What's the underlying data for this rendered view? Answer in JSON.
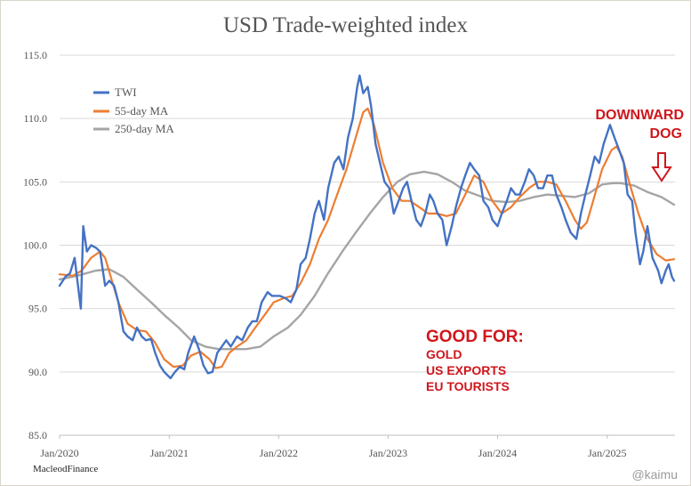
{
  "chart_data": {
    "type": "line",
    "title": "USD Trade-weighted index",
    "xlabel": "",
    "ylabel": "",
    "ylim": [
      85,
      115
    ],
    "xlim": [
      "2020-01-01",
      "2025-08-15"
    ],
    "yticks": [
      "115.0",
      "110.0",
      "105.0",
      "100.0",
      "95.0",
      "90.0",
      "85.0"
    ],
    "xticks": [
      "Jan/2020",
      "Jan/2021",
      "Jan/2022",
      "Jan/2023",
      "Jan/2024",
      "Jan/2025"
    ],
    "grid": true,
    "legend_position": "top-left",
    "series": [
      {
        "name": "TWI",
        "color": "#4472c4",
        "points": [
          [
            "2020-01-01",
            96.8
          ],
          [
            "2020-01-20",
            97.5
          ],
          [
            "2020-02-05",
            97.8
          ],
          [
            "2020-02-20",
            99.0
          ],
          [
            "2020-03-05",
            96.3
          ],
          [
            "2020-03-12",
            95.0
          ],
          [
            "2020-03-20",
            101.5
          ],
          [
            "2020-04-01",
            99.5
          ],
          [
            "2020-04-15",
            100.0
          ],
          [
            "2020-05-01",
            99.8
          ],
          [
            "2020-05-15",
            99.5
          ],
          [
            "2020-06-01",
            96.8
          ],
          [
            "2020-06-15",
            97.2
          ],
          [
            "2020-07-01",
            96.8
          ],
          [
            "2020-07-15",
            95.5
          ],
          [
            "2020-08-01",
            93.2
          ],
          [
            "2020-08-15",
            92.8
          ],
          [
            "2020-09-01",
            92.5
          ],
          [
            "2020-09-15",
            93.5
          ],
          [
            "2020-10-01",
            92.8
          ],
          [
            "2020-10-15",
            92.5
          ],
          [
            "2020-11-01",
            92.6
          ],
          [
            "2020-11-15",
            91.5
          ],
          [
            "2020-12-01",
            90.5
          ],
          [
            "2020-12-15",
            90.0
          ],
          [
            "2021-01-05",
            89.5
          ],
          [
            "2021-01-20",
            90.0
          ],
          [
            "2021-02-05",
            90.4
          ],
          [
            "2021-02-20",
            90.2
          ],
          [
            "2021-03-05",
            91.5
          ],
          [
            "2021-03-25",
            92.8
          ],
          [
            "2021-04-10",
            91.8
          ],
          [
            "2021-04-25",
            90.5
          ],
          [
            "2021-05-10",
            89.9
          ],
          [
            "2021-05-25",
            90.0
          ],
          [
            "2021-06-10",
            91.5
          ],
          [
            "2021-06-25",
            92.0
          ],
          [
            "2021-07-10",
            92.5
          ],
          [
            "2021-07-25",
            92.0
          ],
          [
            "2021-08-15",
            92.8
          ],
          [
            "2021-09-01",
            92.5
          ],
          [
            "2021-09-20",
            93.5
          ],
          [
            "2021-10-05",
            94.0
          ],
          [
            "2021-10-20",
            94.0
          ],
          [
            "2021-11-05",
            95.5
          ],
          [
            "2021-11-25",
            96.3
          ],
          [
            "2021-12-10",
            96.0
          ],
          [
            "2022-01-05",
            96.0
          ],
          [
            "2022-01-25",
            95.8
          ],
          [
            "2022-02-10",
            95.5
          ],
          [
            "2022-03-01",
            96.5
          ],
          [
            "2022-03-15",
            98.5
          ],
          [
            "2022-04-01",
            99.0
          ],
          [
            "2022-04-15",
            100.5
          ],
          [
            "2022-05-01",
            102.5
          ],
          [
            "2022-05-15",
            103.5
          ],
          [
            "2022-06-01",
            102.0
          ],
          [
            "2022-06-15",
            104.5
          ],
          [
            "2022-07-05",
            106.5
          ],
          [
            "2022-07-20",
            107.0
          ],
          [
            "2022-08-05",
            106.0
          ],
          [
            "2022-08-20",
            108.5
          ],
          [
            "2022-09-05",
            110.0
          ],
          [
            "2022-09-20",
            112.5
          ],
          [
            "2022-09-28",
            113.4
          ],
          [
            "2022-10-10",
            112.0
          ],
          [
            "2022-10-25",
            112.5
          ],
          [
            "2022-11-05",
            111.0
          ],
          [
            "2022-11-20",
            108.0
          ],
          [
            "2022-12-05",
            106.5
          ],
          [
            "2022-12-20",
            105.0
          ],
          [
            "2023-01-05",
            104.5
          ],
          [
            "2023-01-20",
            102.5
          ],
          [
            "2023-02-05",
            103.5
          ],
          [
            "2023-02-20",
            104.5
          ],
          [
            "2023-03-05",
            105.0
          ],
          [
            "2023-03-20",
            103.5
          ],
          [
            "2023-04-05",
            102.0
          ],
          [
            "2023-04-20",
            101.5
          ],
          [
            "2023-05-05",
            102.5
          ],
          [
            "2023-05-20",
            104.0
          ],
          [
            "2023-06-01",
            103.5
          ],
          [
            "2023-06-15",
            102.5
          ],
          [
            "2023-07-01",
            102.0
          ],
          [
            "2023-07-15",
            100.0
          ],
          [
            "2023-08-01",
            101.5
          ],
          [
            "2023-08-15",
            103.0
          ],
          [
            "2023-09-01",
            104.5
          ],
          [
            "2023-09-15",
            105.5
          ],
          [
            "2023-10-01",
            106.5
          ],
          [
            "2023-10-15",
            106.0
          ],
          [
            "2023-11-01",
            105.5
          ],
          [
            "2023-11-15",
            103.5
          ],
          [
            "2023-12-01",
            103.0
          ],
          [
            "2023-12-15",
            102.0
          ],
          [
            "2024-01-01",
            101.5
          ],
          [
            "2024-01-15",
            102.5
          ],
          [
            "2024-02-01",
            103.5
          ],
          [
            "2024-02-15",
            104.5
          ],
          [
            "2024-03-01",
            104.0
          ],
          [
            "2024-03-15",
            104.0
          ],
          [
            "2024-04-01",
            105.0
          ],
          [
            "2024-04-15",
            106.0
          ],
          [
            "2024-05-01",
            105.5
          ],
          [
            "2024-05-15",
            104.5
          ],
          [
            "2024-06-01",
            104.5
          ],
          [
            "2024-06-15",
            105.5
          ],
          [
            "2024-07-01",
            105.5
          ],
          [
            "2024-07-15",
            104.0
          ],
          [
            "2024-08-01",
            103.0
          ],
          [
            "2024-08-15",
            102.0
          ],
          [
            "2024-09-01",
            101.0
          ],
          [
            "2024-09-20",
            100.5
          ],
          [
            "2024-10-05",
            102.5
          ],
          [
            "2024-10-20",
            104.0
          ],
          [
            "2024-11-05",
            105.5
          ],
          [
            "2024-11-20",
            107.0
          ],
          [
            "2024-12-05",
            106.5
          ],
          [
            "2024-12-20",
            108.0
          ],
          [
            "2025-01-10",
            109.5
          ],
          [
            "2025-01-25",
            108.5
          ],
          [
            "2025-02-10",
            107.5
          ],
          [
            "2025-02-25",
            106.5
          ],
          [
            "2025-03-10",
            104.0
          ],
          [
            "2025-03-25",
            103.5
          ],
          [
            "2025-04-05",
            101.0
          ],
          [
            "2025-04-20",
            98.5
          ],
          [
            "2025-05-01",
            99.5
          ],
          [
            "2025-05-15",
            101.5
          ],
          [
            "2025-06-01",
            99.0
          ],
          [
            "2025-06-20",
            98.0
          ],
          [
            "2025-07-01",
            97.0
          ],
          [
            "2025-07-15",
            98.0
          ],
          [
            "2025-07-25",
            98.5
          ],
          [
            "2025-08-05",
            97.5
          ],
          [
            "2025-08-12",
            97.2
          ]
        ]
      },
      {
        "name": "55-day MA",
        "color": "#ed7d31",
        "points": [
          [
            "2020-01-01",
            97.7
          ],
          [
            "2020-02-15",
            97.6
          ],
          [
            "2020-03-15",
            98.0
          ],
          [
            "2020-04-15",
            99.0
          ],
          [
            "2020-05-15",
            99.5
          ],
          [
            "2020-06-01",
            99.0
          ],
          [
            "2020-06-20",
            97.5
          ],
          [
            "2020-07-15",
            95.5
          ],
          [
            "2020-08-15",
            93.8
          ],
          [
            "2020-09-15",
            93.3
          ],
          [
            "2020-10-15",
            93.2
          ],
          [
            "2020-11-15",
            92.3
          ],
          [
            "2020-12-15",
            91.0
          ],
          [
            "2021-01-15",
            90.4
          ],
          [
            "2021-02-15",
            90.5
          ],
          [
            "2021-03-15",
            91.3
          ],
          [
            "2021-04-15",
            91.6
          ],
          [
            "2021-05-15",
            91.0
          ],
          [
            "2021-06-05",
            90.3
          ],
          [
            "2021-06-25",
            90.4
          ],
          [
            "2021-07-20",
            91.5
          ],
          [
            "2021-08-15",
            92.0
          ],
          [
            "2021-09-15",
            92.5
          ],
          [
            "2021-10-15",
            93.5
          ],
          [
            "2021-11-15",
            94.5
          ],
          [
            "2021-12-15",
            95.5
          ],
          [
            "2022-01-15",
            95.8
          ],
          [
            "2022-02-15",
            96.0
          ],
          [
            "2022-03-15",
            97.0
          ],
          [
            "2022-04-15",
            98.5
          ],
          [
            "2022-05-15",
            100.5
          ],
          [
            "2022-06-15",
            102.0
          ],
          [
            "2022-07-15",
            104.0
          ],
          [
            "2022-08-15",
            106.0
          ],
          [
            "2022-09-15",
            108.5
          ],
          [
            "2022-10-10",
            110.5
          ],
          [
            "2022-10-25",
            110.8
          ],
          [
            "2022-11-15",
            109.5
          ],
          [
            "2022-12-15",
            106.5
          ],
          [
            "2023-01-15",
            104.5
          ],
          [
            "2023-02-15",
            103.5
          ],
          [
            "2023-03-15",
            103.5
          ],
          [
            "2023-04-15",
            103.0
          ],
          [
            "2023-05-15",
            102.5
          ],
          [
            "2023-06-15",
            102.5
          ],
          [
            "2023-07-15",
            102.3
          ],
          [
            "2023-08-15",
            102.5
          ],
          [
            "2023-09-15",
            104.0
          ],
          [
            "2023-10-15",
            105.5
          ],
          [
            "2023-11-15",
            105.0
          ],
          [
            "2023-12-15",
            103.5
          ],
          [
            "2024-01-15",
            102.5
          ],
          [
            "2024-02-15",
            103.0
          ],
          [
            "2024-03-15",
            103.8
          ],
          [
            "2024-04-15",
            104.5
          ],
          [
            "2024-05-15",
            105.0
          ],
          [
            "2024-06-15",
            105.0
          ],
          [
            "2024-07-15",
            104.8
          ],
          [
            "2024-08-15",
            103.5
          ],
          [
            "2024-09-15",
            102.0
          ],
          [
            "2024-10-05",
            101.3
          ],
          [
            "2024-10-25",
            101.8
          ],
          [
            "2024-11-15",
            103.5
          ],
          [
            "2024-12-15",
            106.0
          ],
          [
            "2025-01-15",
            107.5
          ],
          [
            "2025-02-01",
            107.8
          ],
          [
            "2025-02-20",
            107.0
          ],
          [
            "2025-03-15",
            105.0
          ],
          [
            "2025-04-15",
            102.5
          ],
          [
            "2025-05-15",
            100.5
          ],
          [
            "2025-06-15",
            99.3
          ],
          [
            "2025-07-15",
            98.8
          ],
          [
            "2025-08-12",
            98.9
          ]
        ]
      },
      {
        "name": "250-day MA",
        "color": "#a5a5a5",
        "points": [
          [
            "2020-01-01",
            97.3
          ],
          [
            "2020-03-01",
            97.6
          ],
          [
            "2020-05-01",
            98.0
          ],
          [
            "2020-06-15",
            98.1
          ],
          [
            "2020-08-01",
            97.5
          ],
          [
            "2020-09-15",
            96.5
          ],
          [
            "2020-11-01",
            95.5
          ],
          [
            "2020-12-15",
            94.5
          ],
          [
            "2021-02-01",
            93.5
          ],
          [
            "2021-03-15",
            92.5
          ],
          [
            "2021-05-01",
            92.0
          ],
          [
            "2021-06-15",
            91.8
          ],
          [
            "2021-08-01",
            91.8
          ],
          [
            "2021-09-15",
            91.8
          ],
          [
            "2021-11-01",
            92.0
          ],
          [
            "2021-12-15",
            92.8
          ],
          [
            "2022-02-01",
            93.5
          ],
          [
            "2022-03-15",
            94.5
          ],
          [
            "2022-05-01",
            96.0
          ],
          [
            "2022-06-15",
            97.8
          ],
          [
            "2022-08-01",
            99.5
          ],
          [
            "2022-09-15",
            101.0
          ],
          [
            "2022-11-01",
            102.5
          ],
          [
            "2022-12-15",
            103.8
          ],
          [
            "2023-02-01",
            105.0
          ],
          [
            "2023-03-15",
            105.6
          ],
          [
            "2023-05-01",
            105.8
          ],
          [
            "2023-06-15",
            105.6
          ],
          [
            "2023-08-01",
            105.0
          ],
          [
            "2023-09-15",
            104.3
          ],
          [
            "2023-11-01",
            103.9
          ],
          [
            "2023-12-15",
            103.5
          ],
          [
            "2024-02-01",
            103.4
          ],
          [
            "2024-03-15",
            103.5
          ],
          [
            "2024-05-01",
            103.8
          ],
          [
            "2024-06-15",
            104.0
          ],
          [
            "2024-08-01",
            103.9
          ],
          [
            "2024-09-15",
            103.8
          ],
          [
            "2024-11-01",
            104.1
          ],
          [
            "2024-12-15",
            104.8
          ],
          [
            "2025-01-20",
            104.9
          ],
          [
            "2025-02-15",
            104.9
          ],
          [
            "2025-04-01",
            104.7
          ],
          [
            "2025-05-15",
            104.2
          ],
          [
            "2025-07-01",
            103.8
          ],
          [
            "2025-08-12",
            103.2
          ]
        ]
      }
    ],
    "annotations": {
      "downward_line1": "DOWNWARD",
      "downward_line2": "DOG",
      "good_for_title": "GOOD FOR:",
      "good_for_items": [
        "GOLD",
        "US EXPORTS",
        "EU TOURISTS"
      ],
      "color": "#d0161c"
    }
  },
  "source": "MacleodFinance",
  "handle": "@kaimu"
}
